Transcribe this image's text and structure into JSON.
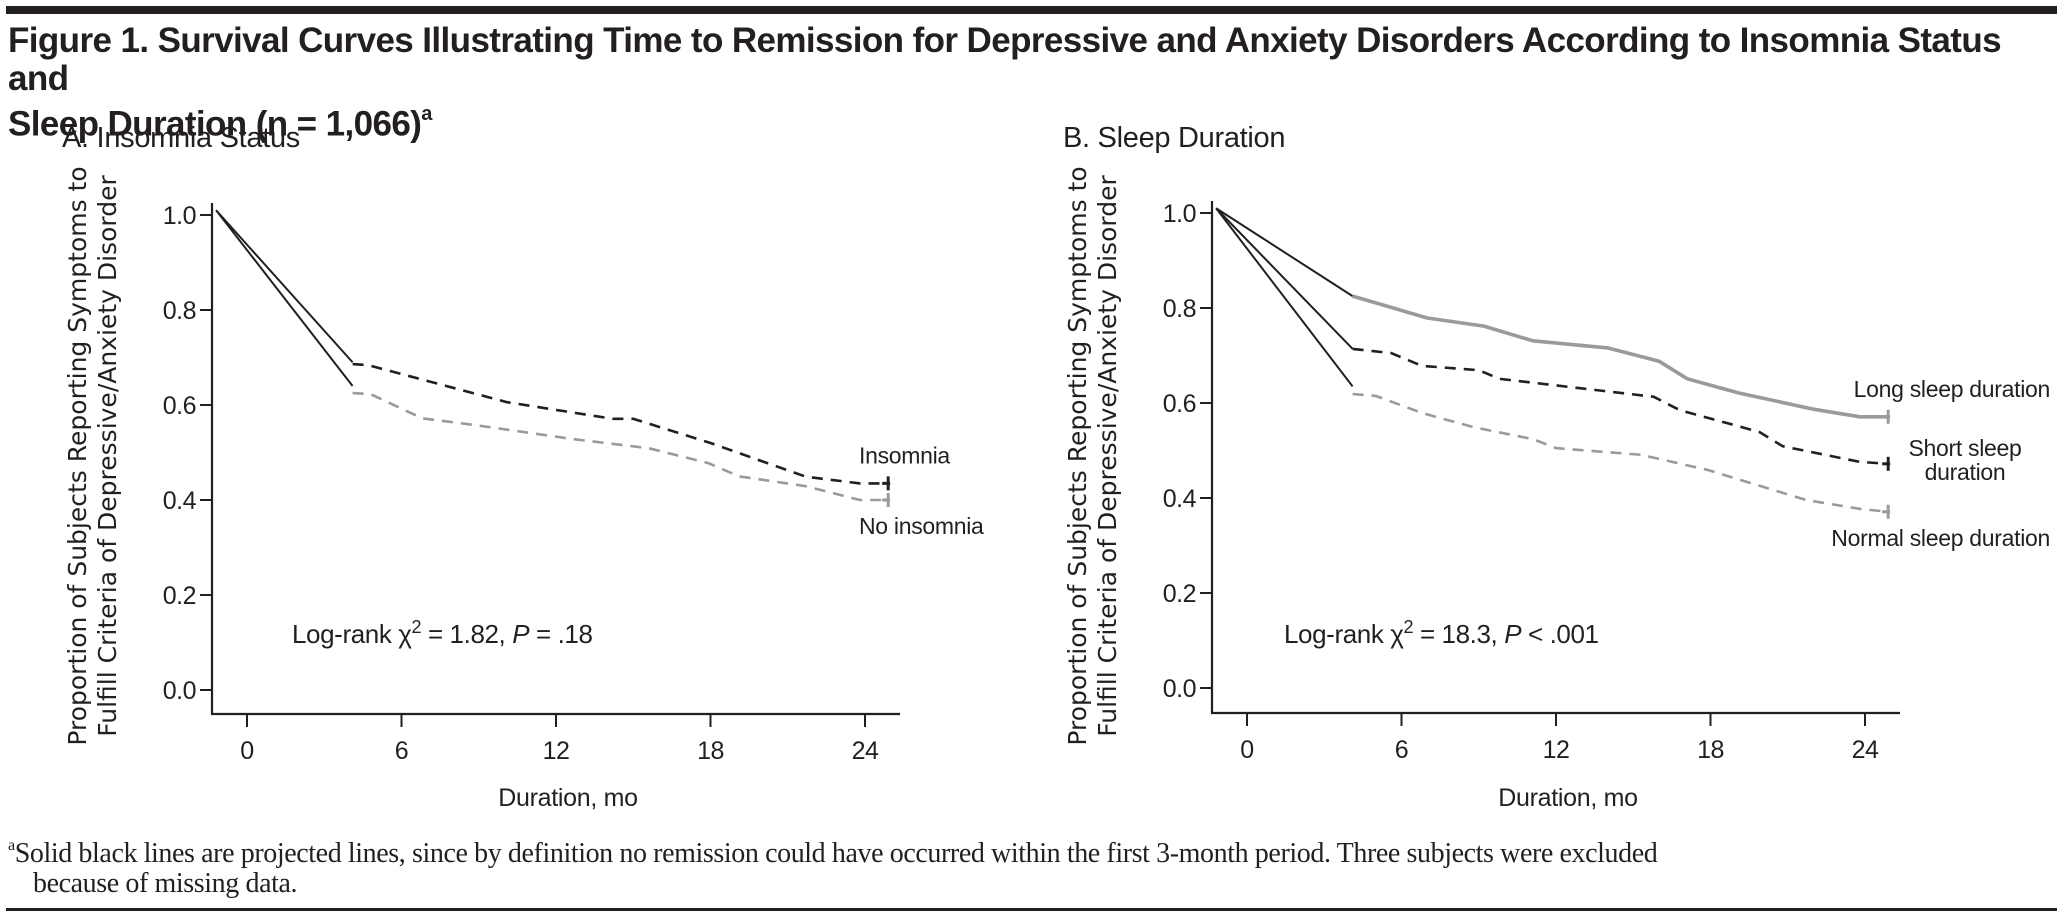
{
  "figure": {
    "title_line1": "Figure 1. Survival Curves Illustrating Time to Remission for Depressive and Anxiety Disorders According to Insomnia Status and",
    "title_line2": "Sleep Duration (n = 1,066)",
    "title_footnote_marker": "a",
    "footnote_marker": "a",
    "footnote_line1": "Solid black lines are projected lines, since by definition no remission could have occurred within the first 3-month period. Three subjects were excluded",
    "footnote_line2": "because of missing data."
  },
  "colors": {
    "ink": "#231f20",
    "gray_series": "#9a9a9a"
  },
  "chart_data": [
    {
      "type": "line",
      "panel": "A",
      "title": "A. Insomnia Status",
      "xlabel": "Duration, mo",
      "ylabel_line1": "Proportion of Subjects Reporting Symptoms to",
      "ylabel_line2": "Fulfill Criteria of Depressive/Anxiety Disorder",
      "xlim": [
        -1.5,
        26
      ],
      "ylim": [
        -0.07,
        1.05
      ],
      "xticks": [
        0,
        6,
        12,
        18,
        24
      ],
      "xtick_labels": [
        "0",
        "6",
        "12",
        "18",
        "24"
      ],
      "yticks": [
        0.0,
        0.2,
        0.4,
        0.6,
        0.8,
        1.0
      ],
      "ytick_labels": [
        "0.0",
        "0.2",
        "0.4",
        "0.6",
        "0.8",
        "1.0"
      ],
      "grid": false,
      "annotation": {
        "prefix": "Log-rank χ",
        "sup": "2",
        "mid": " = 1.82, ",
        "p": "P",
        "suffix": " = .18"
      },
      "projected_start": {
        "x": -1.2,
        "y": 1.01
      },
      "series": [
        {
          "name": "Insomnia",
          "style": "dashed",
          "color": "#231f20",
          "label_position": "above-end",
          "projected_end": {
            "x": 4.1,
            "y": 0.69
          },
          "x": [
            4.1,
            4.7,
            10.1,
            14.2,
            15.0,
            18.0,
            21.7,
            23.8,
            24.9
          ],
          "y": [
            0.686,
            0.684,
            0.606,
            0.571,
            0.571,
            0.52,
            0.449,
            0.435,
            0.435
          ],
          "censor_marker": {
            "x": 24.9,
            "y": 0.435
          }
        },
        {
          "name": "No insomnia",
          "style": "dashed",
          "color": "#9a9a9a",
          "label_position": "below-end",
          "projected_end": {
            "x": 4.1,
            "y": 0.64
          },
          "x": [
            4.1,
            4.8,
            6.8,
            8.8,
            12.7,
            15.6,
            17.9,
            19.1,
            21.7,
            23.8,
            24.9
          ],
          "y": [
            0.625,
            0.623,
            0.572,
            0.558,
            0.528,
            0.509,
            0.478,
            0.45,
            0.429,
            0.4,
            0.4
          ],
          "censor_marker": {
            "x": 24.9,
            "y": 0.4
          }
        }
      ]
    },
    {
      "type": "line",
      "panel": "B",
      "title": "B. Sleep Duration",
      "xlabel": "Duration, mo",
      "ylabel_line1": "Proportion of Subjects Reporting Symptoms to",
      "ylabel_line2": "Fulfill Criteria of Depressive/Anxiety Disorder",
      "xlim": [
        -1.5,
        26
      ],
      "ylim": [
        -0.07,
        1.05
      ],
      "xticks": [
        0,
        6,
        12,
        18,
        24
      ],
      "xtick_labels": [
        "0",
        "6",
        "12",
        "18",
        "24"
      ],
      "yticks": [
        0.0,
        0.2,
        0.4,
        0.6,
        0.8,
        1.0
      ],
      "ytick_labels": [
        "0.0",
        "0.2",
        "0.4",
        "0.6",
        "0.8",
        "1.0"
      ],
      "grid": false,
      "annotation": {
        "prefix": "Log-rank χ",
        "sup": "2",
        "mid": " = 18.3, ",
        "p": "P",
        "suffix": " < .001"
      },
      "projected_start": {
        "x": -1.2,
        "y": 1.01
      },
      "series": [
        {
          "name": "Long sleep duration",
          "style": "solid",
          "color": "#9a9a9a",
          "label_position": "above-end",
          "projected_end": {
            "x": 4.1,
            "y": 0.825
          },
          "x": [
            4.1,
            7.0,
            9.2,
            11.1,
            14.0,
            16.0,
            17.1,
            19.1,
            22.0,
            23.8,
            24.9
          ],
          "y": [
            0.825,
            0.779,
            0.762,
            0.731,
            0.716,
            0.688,
            0.651,
            0.621,
            0.587,
            0.571,
            0.571
          ],
          "censor_marker": {
            "x": 24.9,
            "y": 0.571
          }
        },
        {
          "name": "Short sleep duration",
          "label_lines": [
            "Short sleep",
            "duration"
          ],
          "style": "dashed",
          "color": "#231f20",
          "label_position": "right-end",
          "projected_end": {
            "x": 4.1,
            "y": 0.714
          },
          "x": [
            4.1,
            5.6,
            6.8,
            9.0,
            9.8,
            15.8,
            16.8,
            19.9,
            20.8,
            23.8,
            24.9
          ],
          "y": [
            0.714,
            0.705,
            0.678,
            0.669,
            0.651,
            0.613,
            0.585,
            0.539,
            0.509,
            0.476,
            0.472
          ],
          "censor_marker": {
            "x": 24.9,
            "y": 0.472
          }
        },
        {
          "name": "Normal sleep duration",
          "style": "dashed",
          "color": "#9a9a9a",
          "label_position": "below-end",
          "projected_end": {
            "x": 4.1,
            "y": 0.635
          },
          "x": [
            4.1,
            5.0,
            6.8,
            8.8,
            11.1,
            12.0,
            15.3,
            17.9,
            21.7,
            23.8,
            24.9
          ],
          "y": [
            0.619,
            0.615,
            0.579,
            0.549,
            0.524,
            0.505,
            0.491,
            0.459,
            0.396,
            0.377,
            0.371
          ],
          "censor_marker": {
            "x": 24.9,
            "y": 0.371
          }
        }
      ]
    }
  ]
}
